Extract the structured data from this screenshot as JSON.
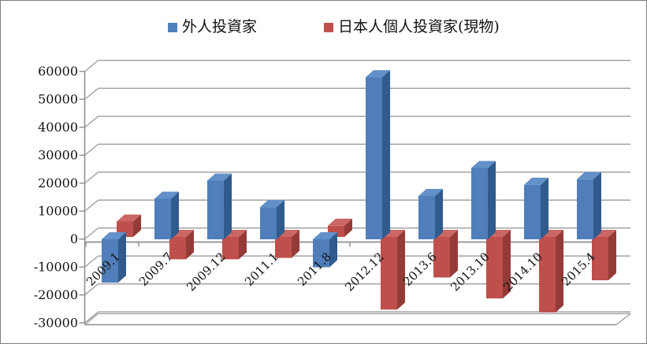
{
  "chart_data": {
    "type": "bar",
    "style": "3d-clustered-column",
    "title": "",
    "xlabel": "",
    "ylabel": "",
    "categories": [
      "2009.1",
      "2009.7",
      "2009.12",
      "2011.1",
      "2011.8",
      "2012.12",
      "2013.6",
      "2013.10",
      "2014.10",
      "2015.4"
    ],
    "series": [
      {
        "name": "外人投資家",
        "color": "#4F81BD",
        "values": [
          -15500,
          14500,
          21000,
          11500,
          -10000,
          58000,
          15500,
          25500,
          19500,
          21500
        ]
      },
      {
        "name": "日本人個人投資家(現物)",
        "color": "#C0504D",
        "values": [
          5500,
          -8000,
          -8000,
          -7500,
          4000,
          -26000,
          -14500,
          -22000,
          -27000,
          -15500
        ]
      }
    ],
    "ylim": [
      -30000,
      60000
    ],
    "yticks": [
      60000,
      50000,
      40000,
      30000,
      20000,
      10000,
      0,
      -10000,
      -20000,
      -30000
    ],
    "grid": true,
    "legend_position": "top"
  },
  "colors": {
    "blue_front": "#4F7EBA",
    "blue_top": "#6290C8",
    "blue_side": "#315A8D",
    "red_front": "#BE4F4C",
    "red_top": "#CA6663",
    "red_side": "#943B38",
    "gridline": "#9B9B9B",
    "axis_line": "#8F8F8F",
    "axis_text": "#141414",
    "frame_border": "#7F7F7F",
    "background": "#FFFFFF"
  }
}
